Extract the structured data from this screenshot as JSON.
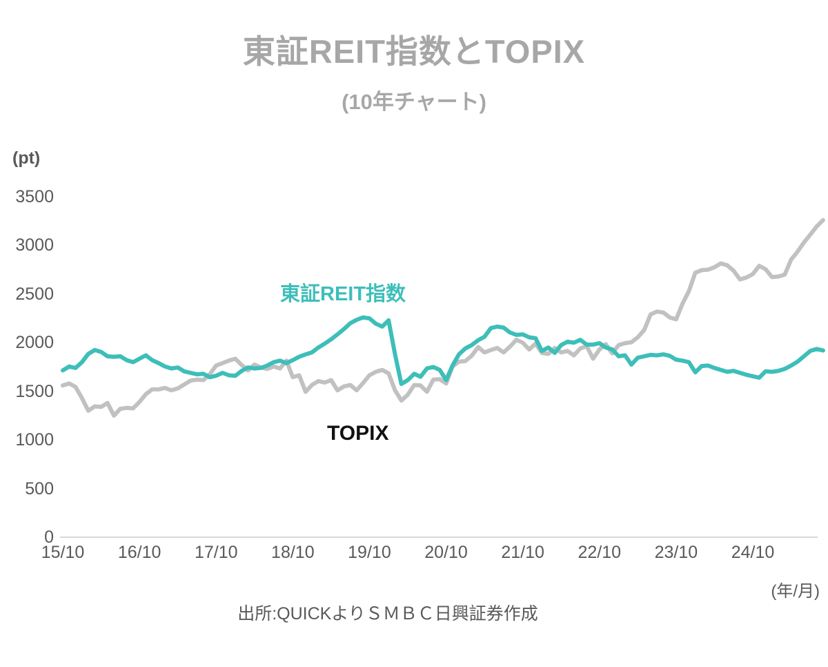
{
  "page": {
    "title": "東証REIT指数とTOPIX",
    "subtitle": "(10年チャート)",
    "source": "出所:QUICKよりＳＭＢＣ日興証券作成"
  },
  "chart_data": {
    "type": "line",
    "title": "東証REIT指数とTOPIX (10年チャート)",
    "unit_label": "(pt)",
    "x_axis_unit": "(年/月)",
    "x_start": "2015/10",
    "x_end": "2025/09",
    "frequency": "monthly",
    "x_tick_labels": [
      "15/10",
      "16/10",
      "17/10",
      "18/10",
      "19/10",
      "20/10",
      "21/10",
      "22/10",
      "23/10",
      "24/10"
    ],
    "x_tick_month_indices": [
      0,
      12,
      24,
      36,
      48,
      60,
      72,
      84,
      96,
      108
    ],
    "y_ticks": [
      0,
      500,
      1000,
      1500,
      2000,
      2500,
      3000,
      3500
    ],
    "ylim": [
      0,
      3500
    ],
    "grid": "none",
    "legend": "inline-labels",
    "series": [
      {
        "key": "topix",
        "name": "TOPIX",
        "color": "#c1c1c1",
        "values": [
          1560,
          1580,
          1545,
          1430,
          1300,
          1345,
          1340,
          1380,
          1250,
          1320,
          1330,
          1325,
          1390,
          1470,
          1520,
          1520,
          1535,
          1510,
          1530,
          1570,
          1610,
          1620,
          1615,
          1675,
          1765,
          1790,
          1815,
          1835,
          1770,
          1715,
          1775,
          1745,
          1730,
          1755,
          1735,
          1815,
          1645,
          1665,
          1495,
          1565,
          1605,
          1590,
          1615,
          1510,
          1550,
          1565,
          1510,
          1585,
          1665,
          1700,
          1720,
          1685,
          1510,
          1405,
          1465,
          1565,
          1560,
          1495,
          1620,
          1625,
          1580,
          1755,
          1805,
          1810,
          1865,
          1955,
          1900,
          1925,
          1945,
          1900,
          1960,
          2030,
          2000,
          1930,
          1990,
          1895,
          1885,
          1945,
          1900,
          1915,
          1870,
          1940,
          1965,
          1835,
          1930,
          1985,
          1890,
          1975,
          1995,
          2005,
          2055,
          2130,
          2290,
          2320,
          2310,
          2260,
          2240,
          2400,
          2530,
          2720,
          2745,
          2750,
          2775,
          2815,
          2795,
          2740,
          2650,
          2670,
          2705,
          2790,
          2755,
          2675,
          2680,
          2700,
          2855,
          2935,
          3030,
          3110,
          3195,
          3260
        ]
      },
      {
        "key": "reit",
        "name": "東証REIT指数",
        "color": "#3dbeb9",
        "values": [
          1715,
          1755,
          1740,
          1800,
          1885,
          1925,
          1905,
          1860,
          1855,
          1860,
          1820,
          1800,
          1835,
          1870,
          1820,
          1790,
          1755,
          1735,
          1745,
          1705,
          1690,
          1675,
          1680,
          1645,
          1660,
          1690,
          1665,
          1660,
          1710,
          1745,
          1735,
          1740,
          1765,
          1800,
          1815,
          1790,
          1820,
          1855,
          1880,
          1900,
          1950,
          1990,
          2035,
          2085,
          2140,
          2200,
          2235,
          2260,
          2250,
          2195,
          2165,
          2230,
          1880,
          1575,
          1615,
          1680,
          1650,
          1735,
          1750,
          1720,
          1615,
          1765,
          1880,
          1940,
          1975,
          2025,
          2060,
          2150,
          2165,
          2155,
          2105,
          2080,
          2085,
          2055,
          2045,
          1915,
          1950,
          1895,
          1975,
          2010,
          2000,
          2030,
          1980,
          1980,
          1995,
          1950,
          1930,
          1860,
          1870,
          1775,
          1845,
          1860,
          1875,
          1870,
          1880,
          1865,
          1825,
          1815,
          1800,
          1695,
          1760,
          1765,
          1740,
          1720,
          1700,
          1710,
          1690,
          1670,
          1655,
          1640,
          1705,
          1700,
          1710,
          1730,
          1765,
          1805,
          1860,
          1915,
          1935,
          1920
        ]
      }
    ]
  }
}
